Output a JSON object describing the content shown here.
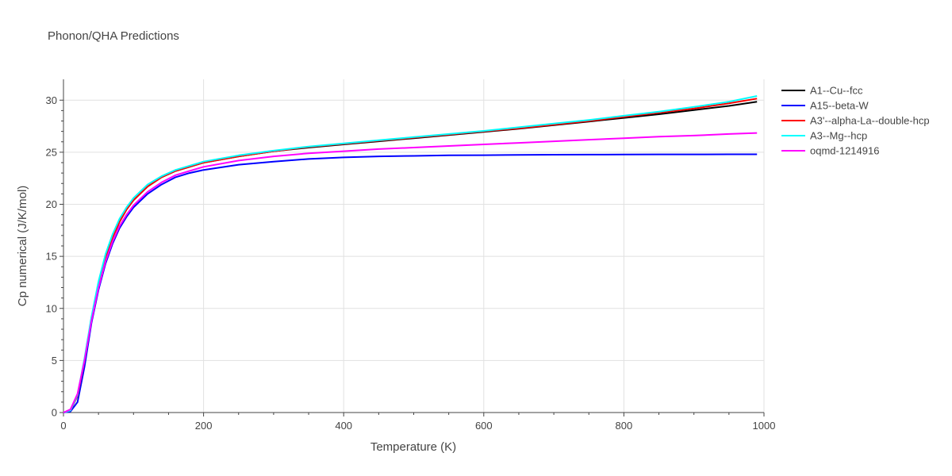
{
  "chart_data": {
    "type": "line",
    "title": "Phonon/QHA Predictions",
    "xlabel": "Temperature (K)",
    "ylabel": "Cp numerical (J/K/mol)",
    "xlim": [
      0,
      1000
    ],
    "ylim": [
      0,
      32
    ],
    "xticks": [
      0,
      200,
      400,
      600,
      800,
      1000
    ],
    "yticks": [
      0,
      5,
      10,
      15,
      20,
      25,
      30
    ],
    "grid": true,
    "legend_position": "top-right",
    "series": [
      {
        "name": "A1--Cu--fcc",
        "color": "#000000",
        "x": [
          0,
          10,
          20,
          30,
          40,
          50,
          60,
          70,
          80,
          90,
          100,
          120,
          140,
          160,
          180,
          200,
          250,
          300,
          350,
          400,
          450,
          500,
          550,
          600,
          650,
          700,
          750,
          800,
          850,
          900,
          950,
          990
        ],
        "y": [
          0,
          0.2,
          1.6,
          5.0,
          9.0,
          12.3,
          14.9,
          16.8,
          18.3,
          19.5,
          20.4,
          21.7,
          22.6,
          23.2,
          23.6,
          24.0,
          24.6,
          25.1,
          25.45,
          25.75,
          26.05,
          26.35,
          26.65,
          26.95,
          27.25,
          27.6,
          27.95,
          28.3,
          28.65,
          29.05,
          29.45,
          29.85
        ]
      },
      {
        "name": "A15--beta-W",
        "color": "#0000ff",
        "x": [
          0,
          10,
          20,
          30,
          40,
          50,
          60,
          70,
          80,
          90,
          100,
          120,
          140,
          160,
          180,
          200,
          250,
          300,
          350,
          400,
          450,
          500,
          550,
          600,
          650,
          700,
          750,
          800,
          850,
          900,
          950,
          990
        ],
        "y": [
          0,
          0.1,
          1.0,
          4.4,
          8.6,
          11.8,
          14.3,
          16.2,
          17.7,
          18.8,
          19.7,
          21.0,
          21.9,
          22.6,
          23.0,
          23.3,
          23.8,
          24.1,
          24.35,
          24.5,
          24.6,
          24.65,
          24.7,
          24.72,
          24.74,
          24.76,
          24.77,
          24.78,
          24.79,
          24.79,
          24.8,
          24.8
        ]
      },
      {
        "name": "A3'--alpha-La--double-hcp",
        "color": "#ff0000",
        "x": [
          0,
          10,
          20,
          30,
          40,
          50,
          60,
          70,
          80,
          90,
          100,
          120,
          140,
          160,
          180,
          200,
          250,
          300,
          350,
          400,
          450,
          500,
          550,
          600,
          650,
          700,
          750,
          800,
          850,
          900,
          950,
          990
        ],
        "y": [
          0,
          0.2,
          1.6,
          5.0,
          9.0,
          12.3,
          14.9,
          16.8,
          18.3,
          19.5,
          20.4,
          21.7,
          22.6,
          23.2,
          23.6,
          24.0,
          24.6,
          25.1,
          25.5,
          25.8,
          26.1,
          26.4,
          26.7,
          27.0,
          27.3,
          27.65,
          28.0,
          28.4,
          28.8,
          29.2,
          29.7,
          30.15
        ]
      },
      {
        "name": "A3--Mg--hcp",
        "color": "#00ffff",
        "x": [
          0,
          10,
          20,
          30,
          40,
          50,
          60,
          70,
          80,
          90,
          100,
          120,
          140,
          160,
          180,
          200,
          250,
          300,
          350,
          400,
          450,
          500,
          550,
          600,
          650,
          700,
          750,
          800,
          850,
          900,
          950,
          990
        ],
        "y": [
          0,
          0.2,
          1.7,
          5.2,
          9.2,
          12.6,
          15.2,
          17.1,
          18.6,
          19.7,
          20.6,
          21.9,
          22.7,
          23.3,
          23.7,
          24.1,
          24.7,
          25.15,
          25.55,
          25.85,
          26.15,
          26.45,
          26.75,
          27.05,
          27.4,
          27.75,
          28.1,
          28.5,
          28.9,
          29.35,
          29.85,
          30.4
        ]
      },
      {
        "name": "oqmd-1214916",
        "color": "#ff00ff",
        "x": [
          0,
          10,
          20,
          30,
          40,
          50,
          60,
          70,
          80,
          90,
          100,
          120,
          140,
          160,
          180,
          200,
          250,
          300,
          350,
          400,
          450,
          500,
          550,
          600,
          650,
          700,
          750,
          800,
          850,
          900,
          950,
          990
        ],
        "y": [
          0,
          0.3,
          1.8,
          5.0,
          8.8,
          12.0,
          14.5,
          16.4,
          17.9,
          19.0,
          19.9,
          21.2,
          22.1,
          22.8,
          23.2,
          23.6,
          24.2,
          24.6,
          24.9,
          25.1,
          25.3,
          25.45,
          25.6,
          25.75,
          25.9,
          26.05,
          26.2,
          26.35,
          26.5,
          26.6,
          26.75,
          26.85
        ]
      }
    ]
  }
}
